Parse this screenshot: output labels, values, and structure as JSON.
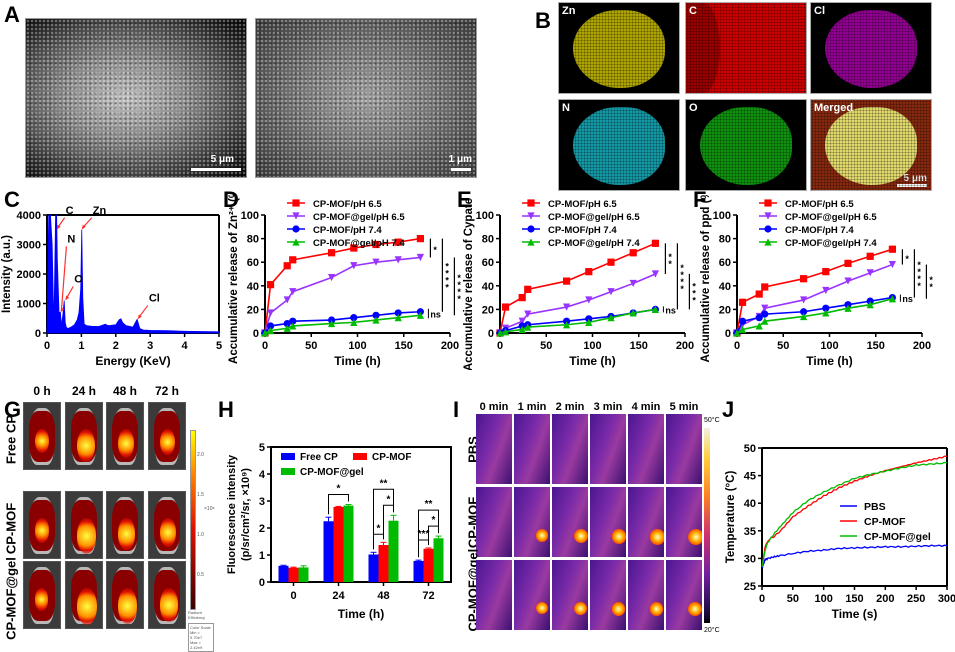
{
  "panels": {
    "A": {
      "label": "A",
      "images": [
        {
          "type": "SEM micrograph",
          "scale_bar": "5 μm"
        },
        {
          "type": "SEM micrograph (magnified)",
          "scale_bar": "1 μm"
        }
      ]
    },
    "B": {
      "label": "B",
      "maps": [
        {
          "element": "Zn",
          "color": "#d4c800"
        },
        {
          "element": "C",
          "color": "#d40000"
        },
        {
          "element": "Cl",
          "color": "#b000b0"
        },
        {
          "element": "N",
          "color": "#18b8c8"
        },
        {
          "element": "O",
          "color": "#10b010"
        },
        {
          "element": "Merged",
          "color": "#e8e070"
        }
      ],
      "scale_bar": "5 μm"
    },
    "G": {
      "label": "G",
      "columns": [
        "0 h",
        "24 h",
        "48 h",
        "72 h"
      ],
      "rows": [
        "Free CP",
        "CP-MOF",
        "CP-MOF@gel"
      ],
      "colorbar": {
        "multiplier": "×10⁸",
        "ticks": [
          "2.0",
          "1.5",
          "1.0",
          "0.5"
        ],
        "unit_label": "Radiant Efficiency",
        "unit": "(p/sec/cm²/sr)/(μW/cm²)",
        "scale_min": "Min = 9.70e7",
        "scale_max": "Max = 2.42e9",
        "scale_title": "Color Scale"
      },
      "intensity": [
        [
          0.35,
          0.8,
          0.6,
          0.45
        ],
        [
          0.4,
          0.95,
          0.75,
          0.6
        ],
        [
          0.3,
          1.0,
          0.95,
          0.85
        ]
      ]
    },
    "I": {
      "label": "I",
      "columns": [
        "0 min",
        "1 min",
        "2 min",
        "3 min",
        "4 min",
        "5 min"
      ],
      "rows": [
        "PBS",
        "CP-MOF",
        "CP-MOF@gel"
      ],
      "colorbar": {
        "max": "50°C",
        "min": "20°C"
      },
      "hotspot": [
        [
          0,
          0,
          0,
          0,
          0,
          0
        ],
        [
          0.1,
          0.6,
          0.75,
          0.85,
          0.95,
          1.0
        ],
        [
          0,
          0.55,
          0.65,
          0.7,
          0.72,
          0.75
        ]
      ]
    }
  },
  "chart_data": [
    {
      "panel": "C",
      "type": "area",
      "title": "",
      "xlabel": "Energy (KeV)",
      "ylabel": "Intensity (a.u.)",
      "xlim": [
        0,
        5
      ],
      "ylim": [
        0,
        4000
      ],
      "xticks": [
        "0",
        "1",
        "2",
        "3",
        "4",
        "5"
      ],
      "yticks": [
        "0",
        "1000",
        "2000",
        "3000",
        "4000"
      ],
      "color": "#0000ff",
      "x": [
        0,
        0.05,
        0.1,
        0.15,
        0.2,
        0.25,
        0.28,
        0.3,
        0.35,
        0.39,
        0.42,
        0.46,
        0.5,
        0.53,
        0.56,
        0.6,
        0.7,
        0.8,
        0.88,
        0.93,
        0.98,
        1.01,
        1.04,
        1.08,
        1.15,
        1.3,
        1.5,
        1.7,
        1.75,
        1.8,
        2.0,
        2.1,
        2.15,
        2.2,
        2.3,
        2.5,
        2.6,
        2.62,
        2.66,
        2.7,
        2.8,
        3.0,
        3.5,
        4.0,
        4.5,
        5.0
      ],
      "y": [
        0,
        4000,
        4000,
        3000,
        200,
        4000,
        4000,
        2500,
        700,
        700,
        250,
        600,
        1100,
        350,
        200,
        150,
        200,
        280,
        450,
        700,
        1500,
        3500,
        1200,
        300,
        250,
        230,
        220,
        300,
        260,
        250,
        280,
        450,
        480,
        350,
        250,
        200,
        420,
        460,
        300,
        150,
        100,
        90,
        80,
        60,
        50,
        40
      ],
      "annotations": [
        {
          "text": "C",
          "x": 0.28,
          "y": 3500
        },
        {
          "text": "N",
          "x": 0.39,
          "y": 700
        },
        {
          "text": "O",
          "x": 0.53,
          "y": 1100
        },
        {
          "text": "Zn",
          "x": 1.01,
          "y": 3500
        },
        {
          "text": "Cl",
          "x": 2.64,
          "y": 460
        }
      ]
    },
    {
      "panel": "D",
      "type": "line",
      "xlabel": "Time (h)",
      "ylabel": "Accumulative release of Zn²⁺ (%)",
      "xlim": [
        0,
        200
      ],
      "ylim": [
        0,
        100
      ],
      "xticks": [
        "0",
        "50",
        "100",
        "150",
        "200"
      ],
      "yticks": [
        "0",
        "20",
        "40",
        "60",
        "80",
        "100"
      ],
      "x": [
        0,
        6,
        24,
        30,
        72,
        96,
        120,
        144,
        168
      ],
      "series": [
        {
          "name": "CP-MOF/pH 6.5",
          "color": "#ff0000",
          "marker": "square",
          "values": [
            0,
            41,
            57,
            62,
            68,
            72,
            75,
            77,
            80
          ]
        },
        {
          "name": "CP-MOF@gel/pH 6.5",
          "color": "#9933ff",
          "marker": "triangle-down",
          "values": [
            0,
            17,
            28,
            35,
            47,
            57,
            60,
            62,
            64
          ]
        },
        {
          "name": "CP-MOF/pH 7.4",
          "color": "#0000ff",
          "marker": "circle",
          "values": [
            0,
            6,
            8,
            10,
            11,
            13,
            15,
            17,
            18
          ]
        },
        {
          "name": "CP-MOF@gel/pH 7.4",
          "color": "#00bb00",
          "marker": "triangle-up",
          "values": [
            0,
            2,
            4,
            6,
            8,
            9,
            11,
            13,
            15
          ]
        }
      ],
      "significance": [
        "*",
        "****",
        "****",
        "ns"
      ]
    },
    {
      "panel": "E",
      "type": "line",
      "xlabel": "Time (h)",
      "ylabel": "Accumulative release of Cypate (%)",
      "xlim": [
        0,
        200
      ],
      "ylim": [
        0,
        100
      ],
      "xticks": [
        "0",
        "50",
        "100",
        "150",
        "200"
      ],
      "yticks": [
        "0",
        "20",
        "40",
        "60",
        "80",
        "100"
      ],
      "x": [
        0,
        6,
        24,
        30,
        72,
        96,
        120,
        144,
        168
      ],
      "series": [
        {
          "name": "CP-MOF/pH 6.5",
          "color": "#ff0000",
          "marker": "square",
          "values": [
            0,
            22,
            30,
            37,
            44,
            52,
            60,
            68,
            76
          ]
        },
        {
          "name": "CP-MOF@gel/pH 6.5",
          "color": "#9933ff",
          "marker": "triangle-down",
          "values": [
            0,
            4,
            10,
            16,
            22,
            28,
            35,
            42,
            50
          ]
        },
        {
          "name": "CP-MOF/pH 7.4",
          "color": "#0000ff",
          "marker": "circle",
          "values": [
            0,
            2,
            6,
            7,
            10,
            12,
            14,
            17,
            20
          ]
        },
        {
          "name": "CP-MOF@gel/pH 7.4",
          "color": "#00bb00",
          "marker": "triangle-up",
          "values": [
            0,
            1,
            3,
            5,
            7,
            9,
            13,
            17,
            20
          ]
        }
      ],
      "significance": [
        "**",
        "****",
        "***",
        "ns"
      ]
    },
    {
      "panel": "F",
      "type": "line",
      "xlabel": "Time (h)",
      "ylabel": "Accumulative release of ppd (%)",
      "xlim": [
        0,
        200
      ],
      "ylim": [
        0,
        100
      ],
      "xticks": [
        "0",
        "50",
        "100",
        "150",
        "200"
      ],
      "yticks": [
        "0",
        "20",
        "40",
        "60",
        "80",
        "100"
      ],
      "x": [
        0,
        6,
        24,
        30,
        72,
        96,
        120,
        144,
        168
      ],
      "series": [
        {
          "name": "CP-MOF/pH 6.5",
          "color": "#ff0000",
          "marker": "square",
          "values": [
            0,
            26,
            33,
            39,
            46,
            52,
            59,
            65,
            71
          ]
        },
        {
          "name": "CP-MOF@gel/pH 6.5",
          "color": "#9933ff",
          "marker": "triangle-down",
          "values": [
            0,
            7,
            14,
            21,
            28,
            36,
            44,
            51,
            58
          ]
        },
        {
          "name": "CP-MOF/pH 7.4",
          "color": "#0000ff",
          "marker": "circle",
          "values": [
            0,
            10,
            13,
            16,
            18,
            21,
            24,
            27,
            30
          ]
        },
        {
          "name": "CP-MOF@gel/pH 7.4",
          "color": "#00bb00",
          "marker": "triangle-up",
          "values": [
            0,
            3,
            6,
            10,
            14,
            17,
            21,
            24,
            29
          ]
        }
      ],
      "significance": [
        "*",
        "****",
        "**",
        "ns"
      ]
    },
    {
      "panel": "H",
      "type": "bar",
      "xlabel": "Time (h)",
      "ylabel": "Fluorescence intensity (p/sr/cm²/sr, ×10⁹)",
      "ylim": [
        0,
        5
      ],
      "yticks": [
        "0",
        "1",
        "2",
        "3",
        "4",
        "5"
      ],
      "categories": [
        "0",
        "24",
        "48",
        "72"
      ],
      "series": [
        {
          "name": "Free CP",
          "color": "#0000ff",
          "values": [
            0.6,
            2.25,
            1.02,
            0.78
          ],
          "errors": [
            0.02,
            0.15,
            0.08,
            0.03
          ]
        },
        {
          "name": "CP-MOF",
          "color": "#ff0000",
          "values": [
            0.53,
            2.78,
            1.37,
            1.23
          ],
          "errors": [
            0.02,
            0.02,
            0.1,
            0.03
          ]
        },
        {
          "name": "CP-MOF@gel",
          "color": "#00bb00",
          "values": [
            0.54,
            2.83,
            2.27,
            1.62
          ],
          "errors": [
            0.06,
            0.04,
            0.2,
            0.08
          ]
        }
      ],
      "significance": [
        {
          "category": "24",
          "from": 0,
          "to": 2,
          "text": "*"
        },
        {
          "category": "48",
          "from": 0,
          "to": 1,
          "text": "*"
        },
        {
          "category": "48",
          "from": 1,
          "to": 2,
          "text": "*"
        },
        {
          "category": "48",
          "from": 0,
          "to": 2,
          "text": "**"
        },
        {
          "category": "72",
          "from": 0,
          "to": 1,
          "text": "***"
        },
        {
          "category": "72",
          "from": 1,
          "to": 2,
          "text": "*"
        },
        {
          "category": "72",
          "from": 0,
          "to": 2,
          "text": "**"
        }
      ]
    },
    {
      "panel": "J",
      "type": "line",
      "xlabel": "Time (s)",
      "ylabel": "Temperature (°C)",
      "xlim": [
        0,
        300
      ],
      "ylim": [
        25,
        50
      ],
      "xticks": [
        "0",
        "50",
        "100",
        "150",
        "200",
        "250",
        "300"
      ],
      "yticks": [
        "25",
        "30",
        "35",
        "40",
        "45",
        "50"
      ],
      "x": [
        0,
        5,
        10,
        20,
        30,
        50,
        75,
        100,
        125,
        150,
        175,
        200,
        225,
        250,
        275,
        300
      ],
      "series": [
        {
          "name": "PBS",
          "color": "#0000ff",
          "values": [
            28.2,
            29.8,
            30.0,
            30.3,
            30.5,
            30.9,
            31.3,
            31.5,
            31.8,
            31.9,
            32.0,
            32.1,
            32.1,
            32.2,
            32.3,
            32.3
          ]
        },
        {
          "name": "CP-MOF",
          "color": "#ff0000",
          "values": [
            28.5,
            32.0,
            33.3,
            34.0,
            35.0,
            37.5,
            39.5,
            41.3,
            42.8,
            44.0,
            45.0,
            45.9,
            46.6,
            47.3,
            47.9,
            48.5
          ]
        },
        {
          "name": "CP-MOF@gel",
          "color": "#00bb00",
          "values": [
            28.5,
            31.5,
            33.0,
            34.5,
            35.8,
            38.3,
            40.5,
            42.0,
            43.3,
            44.5,
            45.2,
            45.8,
            46.4,
            46.9,
            47.1,
            47.3
          ]
        }
      ]
    }
  ]
}
